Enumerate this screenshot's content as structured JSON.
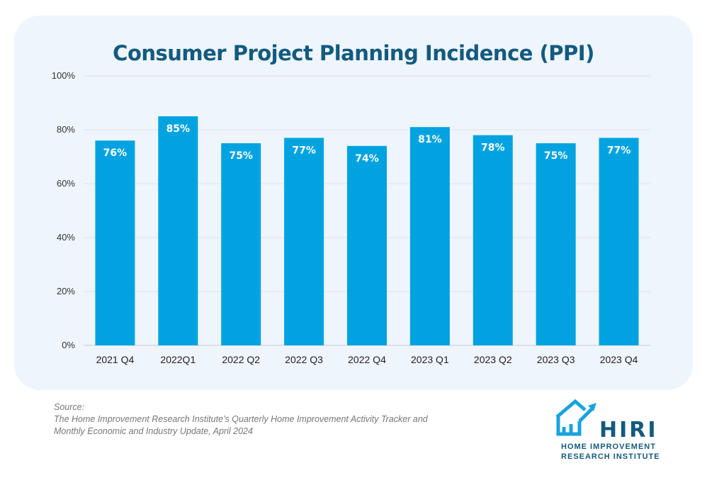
{
  "chart_data": {
    "type": "bar",
    "title": "Consumer Project Planning Incidence (PPI)",
    "categories": [
      "2021 Q4",
      "2022Q1",
      "2022 Q2",
      "2022 Q3",
      "2022 Q4",
      "2023 Q1",
      "2023 Q2",
      "2023 Q3",
      "2023 Q4"
    ],
    "values": [
      76,
      85,
      75,
      77,
      74,
      81,
      78,
      75,
      77
    ],
    "data_labels": [
      "76%",
      "85%",
      "75%",
      "77%",
      "74%",
      "81%",
      "78%",
      "75%",
      "77%"
    ],
    "yticks": [
      "0%",
      "20%",
      "40%",
      "60%",
      "80%",
      "100%"
    ],
    "ylim": [
      0,
      100
    ],
    "xlabel": "",
    "ylabel": "",
    "grid": true,
    "bar_color": "#00a3e0"
  },
  "source": {
    "label": "Source:",
    "line1": "The Home Improvement Research Institute’s Quarterly Home Improvement Activity Tracker and",
    "line2": "Monthly Economic and Industry Update, April 2024"
  },
  "logo": {
    "name": "HIRI",
    "line1": "HOME IMPROVEMENT",
    "line2": "RESEARCH INSTITUTE"
  }
}
